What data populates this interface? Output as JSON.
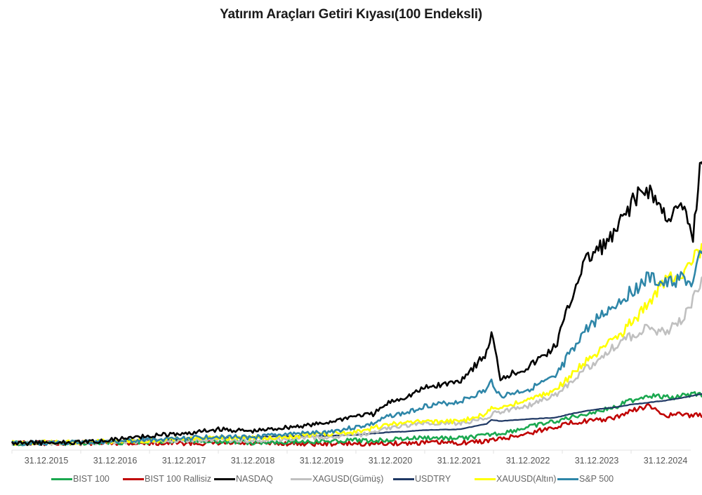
{
  "title": "Yatırım Araçları Getiri Kıyası(100 Endeksli)",
  "colors": {
    "bist100": "#1aa84f",
    "bist100_rallisiz": "#c00000",
    "nasdaq": "#000000",
    "xagusd": "#c0c0c0",
    "usdtry": "#1f3864",
    "xauusd": "#ffff00",
    "sp500": "#2e86a8",
    "axis": "#e6e6e6"
  },
  "chart_data": {
    "type": "line",
    "title": "Yatırım Araçları Getiri Kıyası(100 Endeksli)",
    "xlabel": "",
    "ylabel": "",
    "y_axis_visible": false,
    "grid": false,
    "legend_position": "bottom",
    "categories": [
      "31.12.2015",
      "31.12.2016",
      "31.12.2017",
      "31.12.2018",
      "31.12.2019",
      "31.12.2020",
      "31.12.2021",
      "31.12.2022",
      "31.12.2023",
      "31.12.2024"
    ],
    "x": [
      2015.0,
      2015.5,
      2016.0,
      2016.5,
      2017.0,
      2017.5,
      2018.0,
      2018.5,
      2019.0,
      2019.5,
      2020.0,
      2020.25,
      2020.5,
      2020.75,
      2021.0,
      2021.5,
      2021.9,
      2021.97,
      2022.1,
      2022.5,
      2022.9,
      2023.1,
      2023.3,
      2023.5,
      2023.75,
      2024.0,
      2024.25,
      2024.5,
      2024.75,
      2024.9,
      2025.0,
      2025.25,
      2025.5,
      2025.8
    ],
    "series": [
      {
        "name": "BIST 100",
        "key": "bist100",
        "values": [
          100,
          100,
          105,
          110,
          120,
          140,
          130,
          110,
          125,
          125,
          140,
          135,
          155,
          165,
          180,
          170,
          210,
          230,
          240,
          330,
          420,
          470,
          520,
          560,
          620,
          720,
          800,
          760,
          790,
          810,
          820,
          790,
          860,
          930
        ]
      },
      {
        "name": "BIST 100 Rallisiz",
        "key": "bist100_rallisiz",
        "values": [
          100,
          100,
          100,
          100,
          100,
          100,
          95,
          90,
          95,
          90,
          95,
          90,
          95,
          100,
          110,
          105,
          130,
          145,
          160,
          240,
          340,
          390,
          420,
          430,
          460,
          570,
          640,
          500,
          520,
          500,
          510,
          480,
          540,
          480
        ]
      },
      {
        "name": "NASDAQ",
        "key": "nasdaq",
        "values": [
          100,
          105,
          110,
          150,
          210,
          230,
          300,
          270,
          330,
          380,
          500,
          520,
          700,
          780,
          900,
          1000,
          1400,
          1700,
          1050,
          1200,
          1500,
          2100,
          2700,
          2900,
          3100,
          3600,
          3800,
          3400,
          3500,
          3100,
          4100,
          4600,
          5000,
          5400
        ]
      },
      {
        "name": "XAGUSD(Gümüş)",
        "key": "xagusd",
        "values": [
          100,
          100,
          105,
          115,
          130,
          145,
          150,
          140,
          165,
          170,
          210,
          240,
          330,
          350,
          400,
          390,
          460,
          520,
          560,
          640,
          800,
          960,
          1150,
          1300,
          1500,
          1650,
          1800,
          1700,
          1900,
          2200,
          2400,
          2700,
          2950,
          3100
        ]
      },
      {
        "name": "USDTRY",
        "key": "usdtry",
        "values": [
          100,
          105,
          115,
          125,
          140,
          155,
          175,
          190,
          200,
          205,
          220,
          240,
          260,
          270,
          290,
          300,
          380,
          440,
          420,
          450,
          470,
          520,
          560,
          590,
          620,
          660,
          690,
          720,
          760,
          790,
          810,
          830,
          860,
          880
        ]
      },
      {
        "name": "XAUUSD(Altın)",
        "key": "xauusd",
        "values": [
          100,
          110,
          115,
          125,
          135,
          160,
          170,
          175,
          190,
          230,
          260,
          320,
          380,
          390,
          420,
          410,
          530,
          600,
          620,
          730,
          870,
          1060,
          1250,
          1400,
          1600,
          1850,
          2100,
          2500,
          2600,
          2800,
          2900,
          3200,
          3400,
          3700
        ]
      },
      {
        "name": "S&P 500",
        "key": "sp500",
        "values": [
          100,
          103,
          107,
          120,
          150,
          165,
          200,
          180,
          230,
          250,
          330,
          380,
          500,
          540,
          640,
          700,
          870,
          1000,
          780,
          880,
          1050,
          1400,
          1700,
          1900,
          2100,
          2300,
          2500,
          2400,
          2500,
          2400,
          2800,
          3000,
          3100,
          3050
        ]
      }
    ]
  },
  "legend": [
    {
      "label": "BIST 100",
      "key": "bist100"
    },
    {
      "label": "BIST 100 Rallisiz",
      "key": "bist100_rallisiz"
    },
    {
      "label": "NASDAQ",
      "key": "nasdaq"
    },
    {
      "label": "XAGUSD(Gümüş)",
      "key": "xagusd"
    },
    {
      "label": "USDTRY",
      "key": "usdtry"
    },
    {
      "label": "XAUUSD(Altın)",
      "key": "xauusd"
    },
    {
      "label": "S&P 500",
      "key": "sp500"
    }
  ]
}
